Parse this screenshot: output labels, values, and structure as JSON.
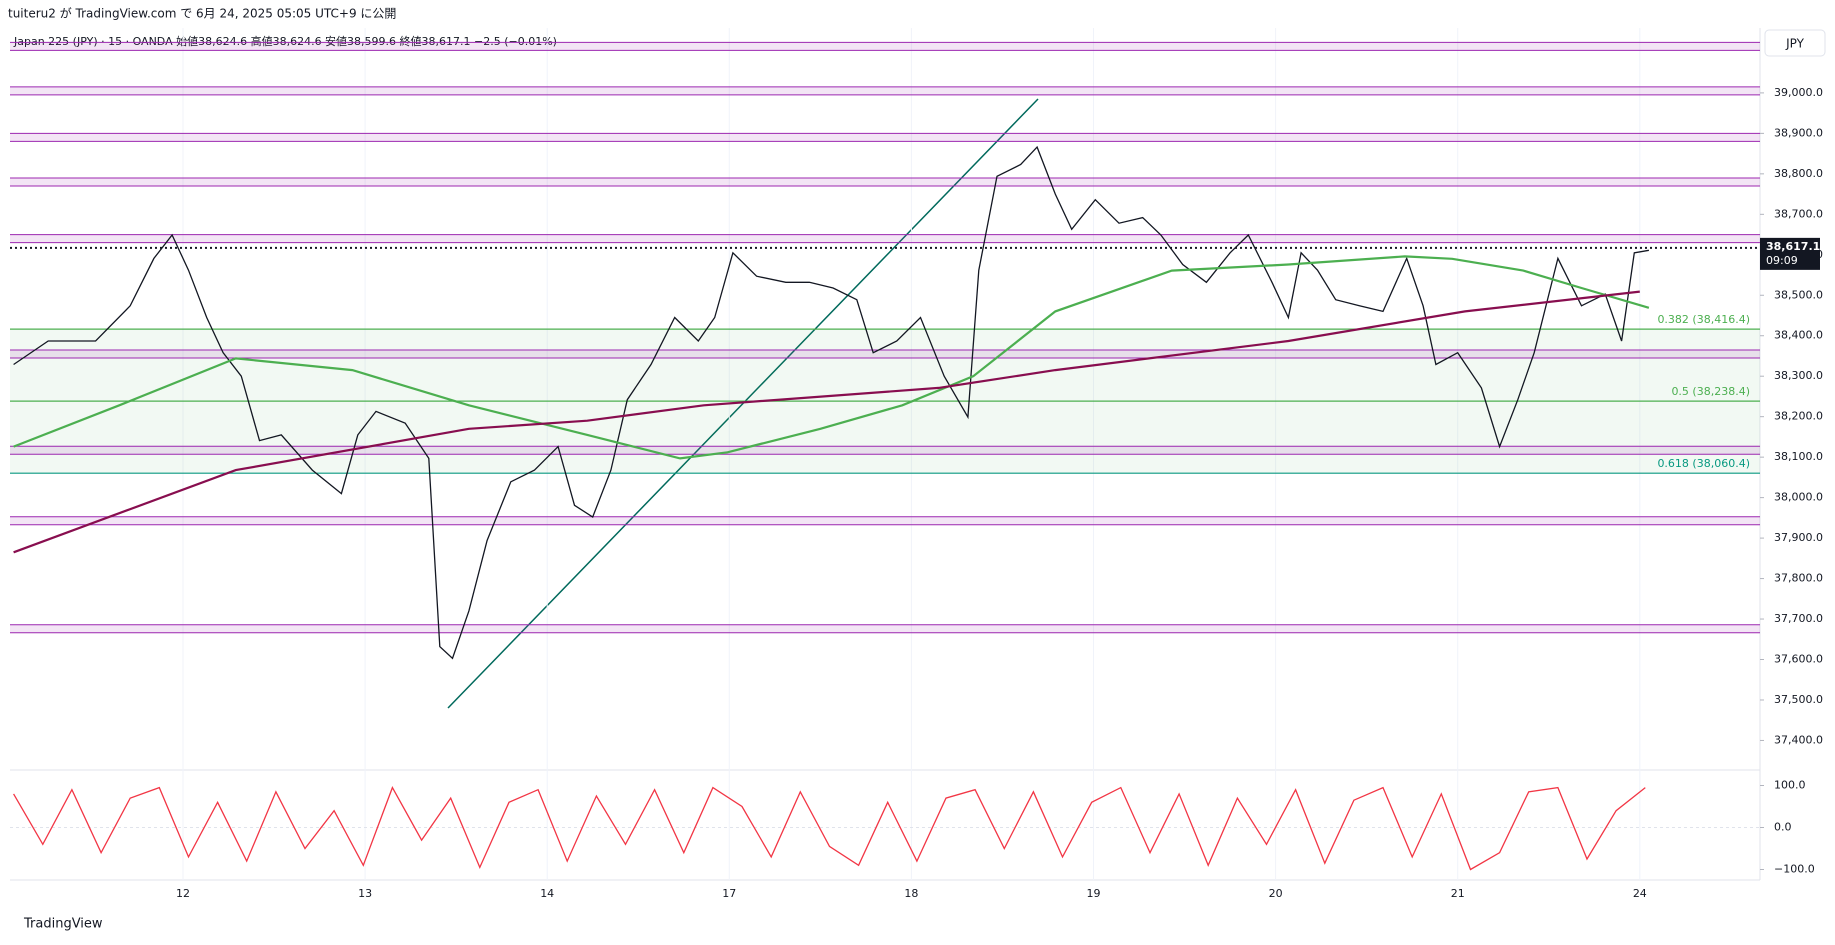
{
  "header": {
    "title": "tuiteru2 が TradingView.com で 6月 24, 2025 05:05 UTC+9 に公開"
  },
  "footer": {
    "brand": "TradingView"
  },
  "chart_data": [
    {
      "type": "line",
      "title": "Japan 225 (JPY) · 15 · OANDA  始値38,624.6  高値38,624.6  安値38,599.6  終値38,617.1  −2.5 (−0.01%)",
      "currency": "JPY",
      "xlim": [
        -0.95,
        8.66
      ],
      "xticks": [
        {
          "value": 0,
          "label": "12"
        },
        {
          "value": 1,
          "label": "13"
        },
        {
          "value": 2,
          "label": "14"
        },
        {
          "value": 3,
          "label": "17"
        },
        {
          "value": 4,
          "label": "18"
        },
        {
          "value": 5,
          "label": "19"
        },
        {
          "value": 6,
          "label": "20"
        },
        {
          "value": 7,
          "label": "21"
        },
        {
          "value": 8,
          "label": "24"
        }
      ],
      "ylim": [
        37327,
        39148
      ],
      "yticks": [
        {
          "value": 37400,
          "label": "37,400.0"
        },
        {
          "value": 37500,
          "label": "37,500.0"
        },
        {
          "value": 37600,
          "label": "37,600.0"
        },
        {
          "value": 37700,
          "label": "37,700.0"
        },
        {
          "value": 37800,
          "label": "37,800.0"
        },
        {
          "value": 37900,
          "label": "37,900.0"
        },
        {
          "value": 38000,
          "label": "38,000.0"
        },
        {
          "value": 38100,
          "label": "38,100.0"
        },
        {
          "value": 38200,
          "label": "38,200.0"
        },
        {
          "value": 38300,
          "label": "38,300.0"
        },
        {
          "value": 38400,
          "label": "38,400.0"
        },
        {
          "value": 38500,
          "label": "38,500.0"
        },
        {
          "value": 38600,
          "label": "38,600.0"
        },
        {
          "value": 38700,
          "label": "38,700.0"
        },
        {
          "value": 38800,
          "label": "38,800.0"
        },
        {
          "value": 38900,
          "label": "38,900.0"
        },
        {
          "value": 39000,
          "label": "39,000.0"
        }
      ],
      "series": [
        {
          "color": "#131722",
          "x": [
            -0.93,
            -0.74,
            -0.48,
            -0.29,
            -0.16,
            -0.06,
            0.03,
            0.13,
            0.22,
            0.32,
            0.42,
            0.54,
            0.71,
            0.87,
            0.96,
            1.06,
            1.22,
            1.35,
            1.41,
            1.48,
            1.57,
            1.67,
            1.8,
            1.93,
            2.06,
            2.15,
            2.25,
            2.35,
            2.44,
            2.57,
            2.7,
            2.83,
            2.92,
            3.02,
            3.15,
            3.31,
            3.44,
            3.57,
            3.7,
            3.79,
            3.92,
            4.05,
            4.18,
            4.31,
            4.37,
            4.47,
            4.6,
            4.69,
            4.79,
            4.88,
            5.01,
            5.14,
            5.27,
            5.37,
            5.49,
            5.62,
            5.75,
            5.85,
            5.98,
            6.07,
            6.14,
            6.23,
            6.33,
            6.46,
            6.59,
            6.72,
            6.81,
            6.88,
            7.0,
            7.13,
            7.23,
            7.33,
            7.42,
            7.55,
            7.68,
            7.81,
            7.9,
            7.97,
            8.05
          ],
          "values": [
            38329,
            38387,
            38387,
            38474,
            38591,
            38649,
            38562,
            38445,
            38358,
            38300,
            38141,
            38155,
            38068,
            38010,
            38155,
            38213,
            38184,
            38097,
            37632,
            37603,
            37720,
            37894,
            38039,
            38068,
            38126,
            37981,
            37952,
            38068,
            38242,
            38329,
            38445,
            38387,
            38445,
            38605,
            38547,
            38532,
            38532,
            38518,
            38489,
            38358,
            38387,
            38445,
            38300,
            38199,
            38562,
            38794,
            38823,
            38866,
            38750,
            38663,
            38736,
            38678,
            38692,
            38649,
            38576,
            38532,
            38605,
            38649,
            38532,
            38445,
            38605,
            38562,
            38489,
            38474,
            38460,
            38591,
            38474,
            38329,
            38358,
            38271,
            38126,
            38242,
            38358,
            38591,
            38474,
            38503,
            38387,
            38605,
            38611
          ]
        },
        {
          "color": "#4caf50",
          "x": [
            -0.93,
            -0.35,
            0.29,
            0.93,
            1.57,
            2.22,
            2.73,
            2.99,
            3.5,
            3.95,
            4.34,
            4.79,
            5.43,
            6.07,
            6.71,
            6.97,
            7.36,
            7.68,
            8.05
          ],
          "values": [
            38126,
            38228,
            38344,
            38315,
            38228,
            38155,
            38097,
            38112,
            38170,
            38228,
            38300,
            38460,
            38561,
            38576,
            38596,
            38590,
            38561,
            38518,
            38469
          ]
        },
        {
          "color": "#880e4f",
          "x": [
            -0.93,
            0.29,
            1.57,
            2.22,
            2.86,
            4.15,
            4.79,
            6.07,
            7.04,
            8.0
          ],
          "values": [
            37865,
            38068,
            38170,
            38190,
            38228,
            38271,
            38315,
            38387,
            38460,
            38509
          ]
        }
      ],
      "levels": [
        39115,
        39005,
        38890,
        38780,
        38640,
        38355,
        38117,
        37943,
        37676
      ],
      "level_color": "#9c27b0",
      "fib_levels": [
        {
          "value": 38416.4,
          "label": "0.382 (38,416.4)",
          "color": "#4caf50"
        },
        {
          "value": 38238.4,
          "label": "0.5 (38,238.4)",
          "color": "#4caf50"
        },
        {
          "value": 38060.4,
          "label": "0.618 (38,060.4)",
          "color": "#089981"
        }
      ],
      "last_price": {
        "value": 38617.1,
        "label": "38,617.1",
        "time": "09:09"
      }
    },
    {
      "type": "line",
      "xlim": [
        -0.95,
        8.66
      ],
      "ylim": [
        -125,
        125
      ],
      "yticks": [
        {
          "value": 100,
          "label": "100.0"
        },
        {
          "value": 0,
          "label": "0.0"
        },
        {
          "value": -100,
          "label": "−100.0"
        }
      ],
      "series": [
        {
          "color": "#f23645",
          "x": [
            -0.93,
            -0.77,
            -0.61,
            -0.45,
            -0.29,
            -0.13,
            0.03,
            0.19,
            0.35,
            0.51,
            0.67,
            0.83,
            0.99,
            1.15,
            1.31,
            1.47,
            1.63,
            1.79,
            1.95,
            2.11,
            2.27,
            2.43,
            2.59,
            2.75,
            2.91,
            3.07,
            3.23,
            3.39,
            3.55,
            3.71,
            3.87,
            4.03,
            4.19,
            4.35,
            4.51,
            4.67,
            4.83,
            4.99,
            5.15,
            5.31,
            5.47,
            5.63,
            5.79,
            5.95,
            6.11,
            6.27,
            6.43,
            6.59,
            6.75,
            6.91,
            7.07,
            7.23,
            7.39,
            7.55,
            7.71,
            7.87,
            8.03
          ],
          "values": [
            80,
            -40,
            90,
            -60,
            70,
            95,
            -70,
            60,
            -80,
            85,
            -50,
            40,
            -90,
            95,
            -30,
            70,
            -95,
            60,
            90,
            -80,
            75,
            -40,
            90,
            -60,
            95,
            50,
            -70,
            85,
            -45,
            -90,
            60,
            -80,
            70,
            90,
            -50,
            85,
            -70,
            60,
            95,
            -60,
            80,
            -90,
            70,
            -40,
            90,
            -85,
            65,
            95,
            -70,
            80,
            -100,
            -60,
            85,
            95,
            -75,
            40,
            95
          ]
        }
      ]
    }
  ]
}
